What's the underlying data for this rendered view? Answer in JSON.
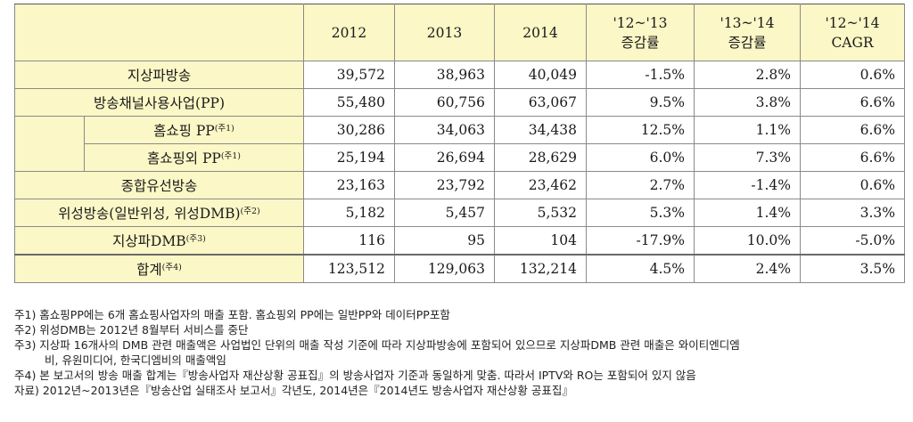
{
  "header": {
    "years": [
      "2012",
      "2013",
      "2014"
    ],
    "change_12_13": [
      "'12~'13",
      "증감률"
    ],
    "change_13_14": [
      "'13~'14",
      "증감률"
    ],
    "cagr": [
      "'12~'14",
      "CAGR"
    ]
  },
  "rows": [
    {
      "label": "지상파방송",
      "sup": "",
      "v2012": "39,572",
      "v2013": "38,963",
      "v2014": "40,049",
      "c1": "-1.5%",
      "c2": "2.8%",
      "cagr": "0.6%"
    },
    {
      "label": "방송채널사용사업(PP)",
      "sup": "",
      "v2012": "55,480",
      "v2013": "60,756",
      "v2014": "63,067",
      "c1": "9.5%",
      "c2": "3.8%",
      "cagr": "6.6%"
    },
    {
      "label": "홈쇼핑 PP",
      "sup": "(주1)",
      "v2012": "30,286",
      "v2013": "34,063",
      "v2014": "34,438",
      "c1": "12.5%",
      "c2": "1.1%",
      "cagr": "6.6%"
    },
    {
      "label": "홈쇼핑외 PP",
      "sup": "(주1)",
      "v2012": "25,194",
      "v2013": "26,694",
      "v2014": "28,629",
      "c1": "6.0%",
      "c2": "7.3%",
      "cagr": "6.6%"
    },
    {
      "label": "종합유선방송",
      "sup": "",
      "v2012": "23,163",
      "v2013": "23,792",
      "v2014": "23,462",
      "c1": "2.7%",
      "c2": "-1.4%",
      "cagr": "0.6%"
    },
    {
      "label": "위성방송(일반위성, 위성DMB)",
      "sup": "(주2)",
      "v2012": "5,182",
      "v2013": "5,457",
      "v2014": "5,532",
      "c1": "5.3%",
      "c2": "1.4%",
      "cagr": "3.3%"
    },
    {
      "label": "지상파DMB",
      "sup": "(주3)",
      "v2012": "116",
      "v2013": "95",
      "v2014": "104",
      "c1": "-17.9%",
      "c2": "10.0%",
      "cagr": "-5.0%"
    },
    {
      "label": "합계",
      "sup": "(주4)",
      "v2012": "123,512",
      "v2013": "129,063",
      "v2014": "132,214",
      "c1": "4.5%",
      "c2": "2.4%",
      "cagr": "3.5%"
    }
  ],
  "notes": {
    "n1": "주1) 홈쇼핑PP에는 6개 홈쇼핑사업자의 매출 포함. 홈쇼핑외 PP에는 일반PP와 데이터PP포함",
    "n2": "주2) 위성DMB는 2012년 8월부터 서비스를 중단",
    "n3a": "주3) 지상파 16개사의 DMB 관련 매출액은 사업법인 단위의 매출 작성 기준에 따라 지상파방송에 포함되어 있으므로 지상파DMB 관련 매출은 와이티엔디엠",
    "n3b": "비, 유원미디어, 한국디엠비의 매출액임",
    "n4": "주4) 본 보고서의 방송 매출 합계는『방송사업자 재산상황 공표집』의 방송사업자 기준과 동일하게 맞춤. 따라서 IPTV와 RO는 포함되어 있지 않음",
    "src": "자료) 2012년~2013년은『방송산업 실태조사 보고서』각년도, 2014년은『2014년도 방송사업자 재산상황 공표집』"
  }
}
